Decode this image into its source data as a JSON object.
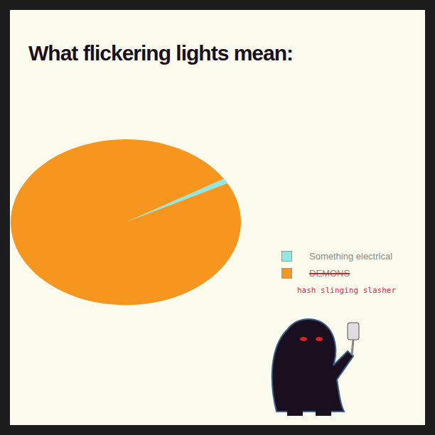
{
  "chart_data": {
    "type": "pie",
    "title": "What flickering lights mean:",
    "categories": [
      "Something electrical",
      "DEMONS"
    ],
    "values": [
      1,
      99
    ],
    "colors": [
      "#8ee8e6",
      "#f7961e"
    ],
    "annotation": "hash slinging slasher",
    "legend": "right"
  }
}
